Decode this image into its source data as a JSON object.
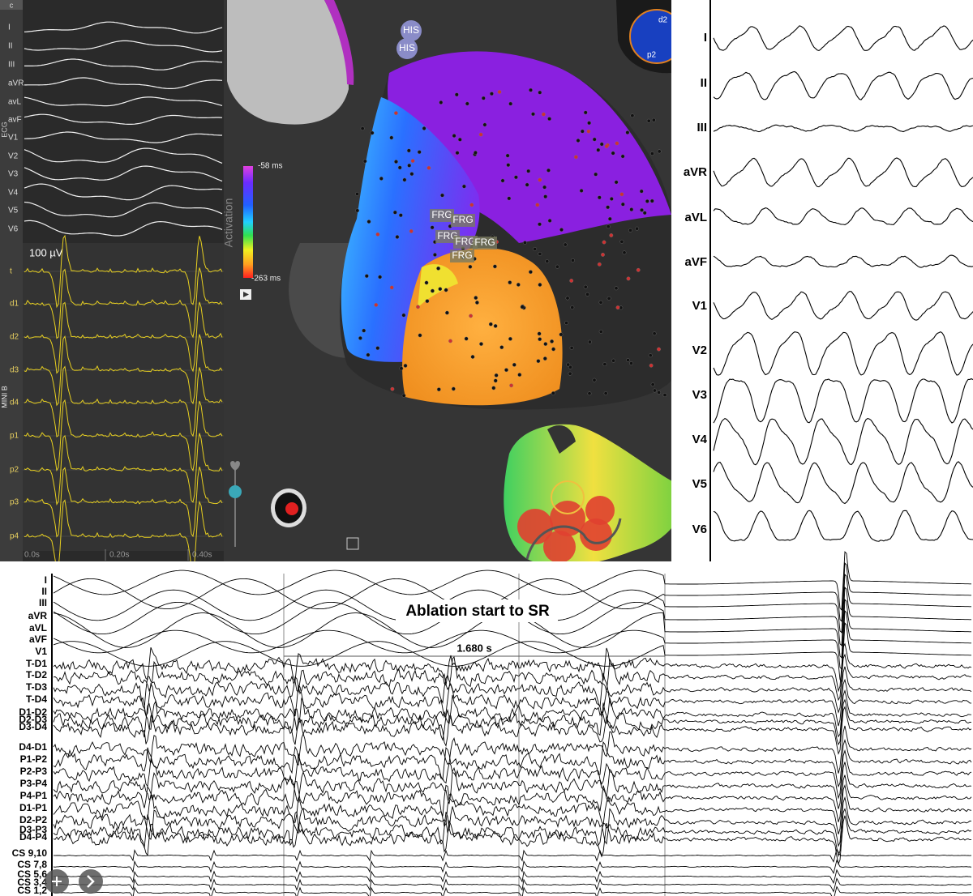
{
  "left_panel": {
    "panel_label": "c",
    "ecg_group": "ECG",
    "ecg_leads": [
      "I",
      "II",
      "III",
      "aVR",
      "avL",
      "avF",
      "V1",
      "V2",
      "V3",
      "V4",
      "V5",
      "V6"
    ],
    "scale": "100 µV",
    "mini_group": "MINI B",
    "mini_leads": [
      "t",
      "d1",
      "d2",
      "d3",
      "d4",
      "p1",
      "p2",
      "p3",
      "p4"
    ],
    "time_labels": [
      "0.0s",
      "0.20s",
      "0.40s"
    ]
  },
  "map_panel": {
    "colorbar_title": "Activation",
    "colorbar_max": "-58 ms",
    "colorbar_min": "-263 ms",
    "his_labels": [
      "HIS",
      "HIS"
    ],
    "frg_labels": [
      "FRG",
      "FRG",
      "FRG",
      "FRG",
      "FRG",
      "FRG"
    ],
    "inset_labels": [
      "d2",
      "p2"
    ]
  },
  "right_panel": {
    "leads": [
      "I",
      "II",
      "III",
      "aVR",
      "aVL",
      "aVF",
      "V1",
      "V2",
      "V3",
      "V4",
      "V5",
      "V6"
    ]
  },
  "bottom_panel": {
    "title": "Ablation start to SR",
    "interval": "1.680 s",
    "leads": [
      "I",
      "II",
      "III",
      "aVR",
      "aVL",
      "aVF",
      "V1",
      "T-D1",
      "T-D2",
      "T-D3",
      "T-D4",
      "D1-D2",
      "D2-D3",
      "D3-D4",
      "D4-D1",
      "P1-P2",
      "P2-P3",
      "P3-P4",
      "P4-P1",
      "D1-P1",
      "D2-P2",
      "D3-P3",
      "D4-P4",
      "CS 9,10",
      "CS 7,8",
      "CS 5,6",
      "CS 3,4",
      "CS 1,2"
    ]
  }
}
